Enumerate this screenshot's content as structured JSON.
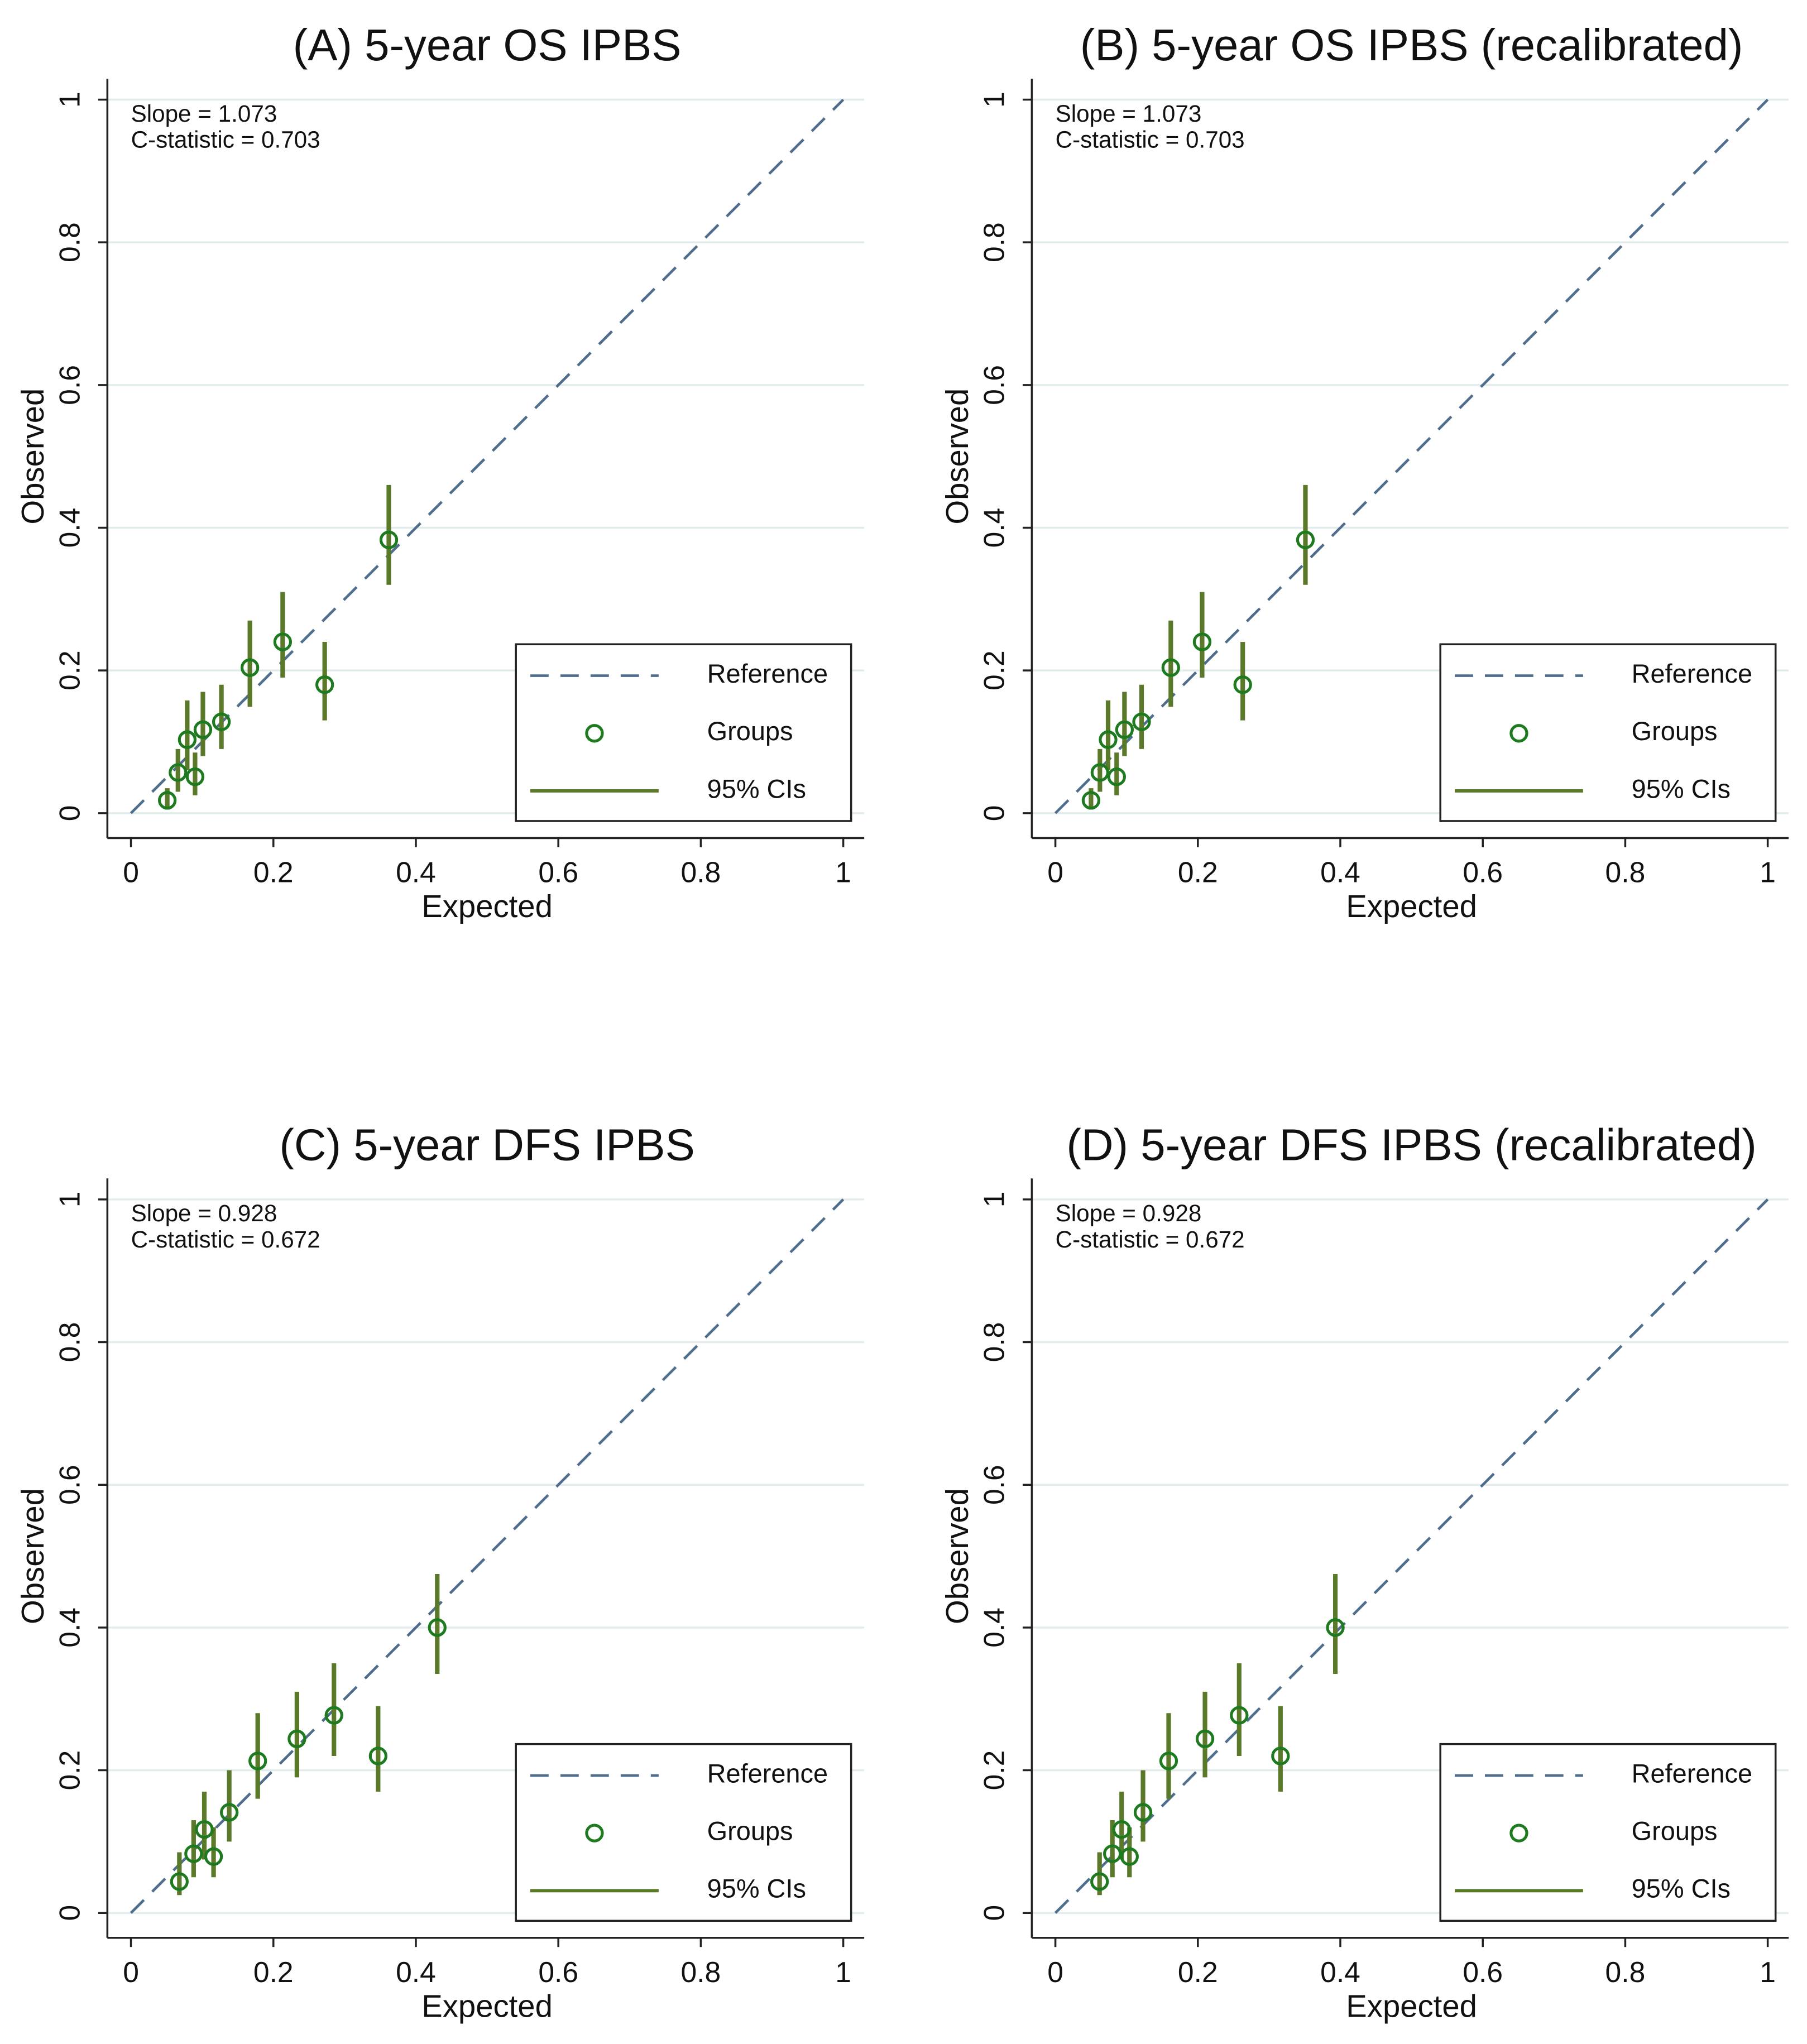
{
  "chart_data": [
    {
      "type": "scatter",
      "title": "(A) 5-year OS IPBS",
      "annotations": [
        "Slope = 1.073",
        "C-statistic = 0.703"
      ],
      "x_label": "Expected",
      "y_label": "Observed",
      "xlim": [
        0,
        1
      ],
      "ylim": [
        0,
        1
      ],
      "xticks": [
        0,
        0.2,
        0.4,
        0.6,
        0.8,
        1
      ],
      "yticks": [
        0,
        0.2,
        0.4,
        0.6,
        0.8,
        1
      ],
      "grid": true,
      "legend": "lower right",
      "series": [
        {
          "name": "Reference",
          "color": "#4f6d8c",
          "dashed": true,
          "x": [
            0,
            1
          ],
          "values": [
            0,
            1
          ]
        },
        {
          "name": "Groups",
          "color": "#1e7a1e",
          "x": [
            0.051,
            0.066,
            0.079,
            0.09,
            0.101,
            0.127,
            0.167,
            0.213,
            0.272,
            0.362
          ],
          "values": [
            0.018,
            0.057,
            0.103,
            0.051,
            0.117,
            0.128,
            0.204,
            0.24,
            0.18,
            0.383
          ]
        }
      ],
      "ci": {
        "name": "95% CIs",
        "color": "#5a7a2a",
        "low": [
          0.005,
          0.03,
          0.06,
          0.025,
          0.08,
          0.09,
          0.149,
          0.19,
          0.13,
          0.32
        ],
        "high": [
          0.035,
          0.09,
          0.158,
          0.085,
          0.17,
          0.18,
          0.27,
          0.31,
          0.24,
          0.46
        ]
      }
    },
    {
      "type": "scatter",
      "title": "(B) 5-year OS IPBS (recalibrated)",
      "annotations": [
        "Slope = 1.073",
        "C-statistic = 0.703"
      ],
      "x_label": "Expected",
      "y_label": "Observed",
      "xlim": [
        0,
        1
      ],
      "ylim": [
        0,
        1
      ],
      "xticks": [
        0,
        0.2,
        0.4,
        0.6,
        0.8,
        1
      ],
      "yticks": [
        0,
        0.2,
        0.4,
        0.6,
        0.8,
        1
      ],
      "grid": true,
      "legend": "lower right",
      "series": [
        {
          "name": "Reference",
          "color": "#4f6d8c",
          "dashed": true,
          "x": [
            0,
            1
          ],
          "values": [
            0,
            1
          ]
        },
        {
          "name": "Groups",
          "color": "#1e7a1e",
          "x": [
            0.05,
            0.0625,
            0.074,
            0.086,
            0.097,
            0.121,
            0.162,
            0.206,
            0.263,
            0.351
          ],
          "values": [
            0.018,
            0.057,
            0.103,
            0.051,
            0.117,
            0.128,
            0.204,
            0.24,
            0.18,
            0.383
          ]
        }
      ],
      "ci": {
        "name": "95% CIs",
        "color": "#5a7a2a",
        "low": [
          0.005,
          0.03,
          0.06,
          0.025,
          0.08,
          0.09,
          0.149,
          0.19,
          0.13,
          0.32
        ],
        "high": [
          0.035,
          0.09,
          0.158,
          0.085,
          0.17,
          0.18,
          0.27,
          0.31,
          0.24,
          0.46
        ]
      }
    },
    {
      "type": "scatter",
      "title": "(C) 5-year DFS IPBS",
      "annotations": [
        "Slope = 0.928",
        "C-statistic = 0.672"
      ],
      "x_label": "Expected",
      "y_label": "Observed",
      "xlim": [
        0,
        1
      ],
      "ylim": [
        0,
        1
      ],
      "xticks": [
        0,
        0.2,
        0.4,
        0.6,
        0.8,
        1
      ],
      "yticks": [
        0,
        0.2,
        0.4,
        0.6,
        0.8,
        1
      ],
      "grid": true,
      "legend": "lower right",
      "series": [
        {
          "name": "Reference",
          "color": "#4f6d8c",
          "dashed": true,
          "x": [
            0,
            1
          ],
          "values": [
            0,
            1
          ]
        },
        {
          "name": "Groups",
          "color": "#1e7a1e",
          "x": [
            0.068,
            0.088,
            0.103,
            0.116,
            0.138,
            0.178,
            0.233,
            0.285,
            0.347,
            0.43
          ],
          "values": [
            0.044,
            0.083,
            0.117,
            0.079,
            0.141,
            0.213,
            0.244,
            0.277,
            0.22,
            0.4
          ]
        }
      ],
      "ci": {
        "name": "95% CIs",
        "color": "#5a7a2a",
        "low": [
          0.025,
          0.05,
          0.075,
          0.05,
          0.1,
          0.16,
          0.19,
          0.22,
          0.17,
          0.335
        ],
        "high": [
          0.085,
          0.13,
          0.17,
          0.12,
          0.2,
          0.28,
          0.31,
          0.35,
          0.29,
          0.475
        ]
      }
    },
    {
      "type": "scatter",
      "title": "(D) 5-year DFS IPBS (recalibrated)",
      "annotations": [
        "Slope = 0.928",
        "C-statistic = 0.672"
      ],
      "x_label": "Expected",
      "y_label": "Observed",
      "xlim": [
        0,
        1
      ],
      "ylim": [
        0,
        1
      ],
      "xticks": [
        0,
        0.2,
        0.4,
        0.6,
        0.8,
        1
      ],
      "yticks": [
        0,
        0.2,
        0.4,
        0.6,
        0.8,
        1
      ],
      "grid": true,
      "legend": "lower right",
      "series": [
        {
          "name": "Reference",
          "color": "#4f6d8c",
          "dashed": true,
          "x": [
            0,
            1
          ],
          "values": [
            0,
            1
          ]
        },
        {
          "name": "Groups",
          "color": "#1e7a1e",
          "x": [
            0.062,
            0.08,
            0.093,
            0.104,
            0.123,
            0.159,
            0.21,
            0.258,
            0.316,
            0.393
          ],
          "values": [
            0.044,
            0.083,
            0.117,
            0.079,
            0.141,
            0.213,
            0.244,
            0.277,
            0.22,
            0.4
          ]
        }
      ],
      "ci": {
        "name": "95% CIs",
        "color": "#5a7a2a",
        "low": [
          0.025,
          0.05,
          0.075,
          0.05,
          0.1,
          0.16,
          0.19,
          0.22,
          0.17,
          0.335
        ],
        "high": [
          0.085,
          0.13,
          0.17,
          0.12,
          0.2,
          0.28,
          0.31,
          0.35,
          0.29,
          0.475
        ]
      }
    }
  ]
}
